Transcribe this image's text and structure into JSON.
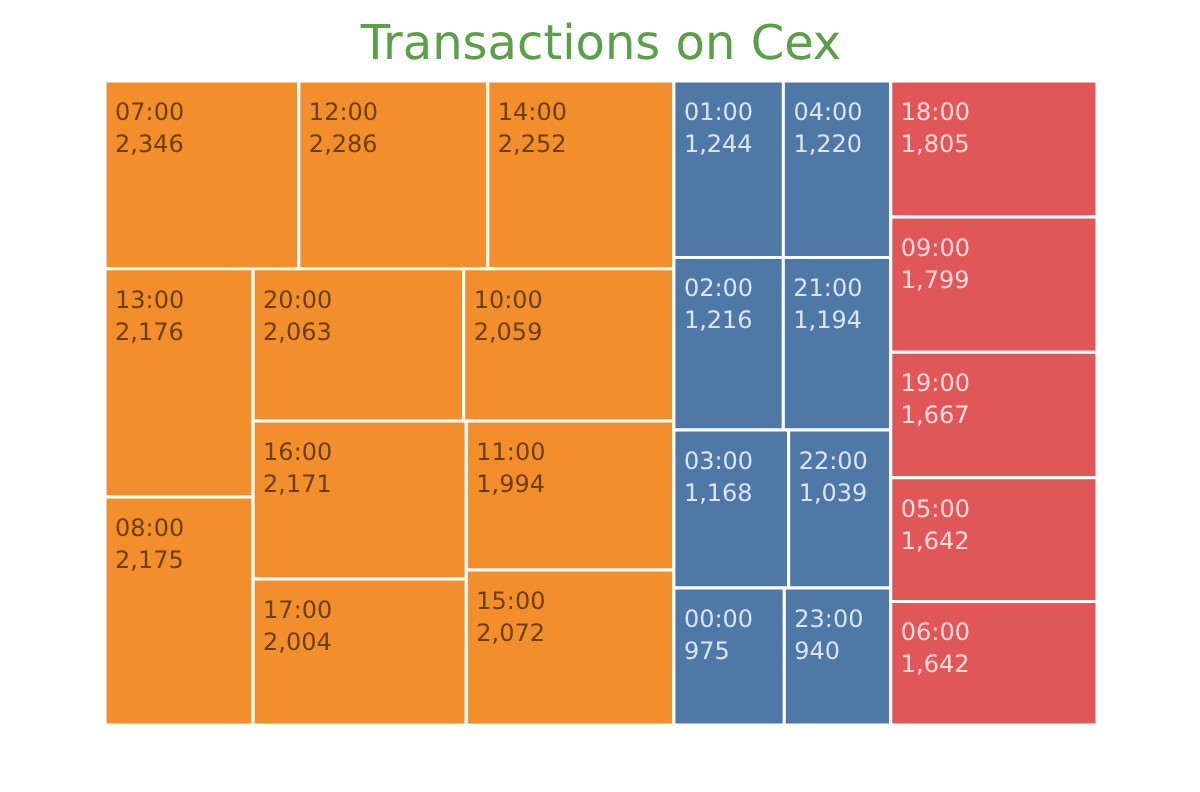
{
  "chart_data": {
    "type": "other",
    "title": "Transactions on Cex",
    "data_labels": true,
    "categories": [
      "07:00",
      "12:00",
      "14:00",
      "13:00",
      "08:00",
      "20:00",
      "10:00",
      "16:00",
      "17:00",
      "11:00",
      "15:00",
      "01:00",
      "04:00",
      "02:00",
      "21:00",
      "03:00",
      "22:00",
      "00:00",
      "23:00",
      "18:00",
      "09:00",
      "19:00",
      "05:00",
      "06:00"
    ],
    "values": [
      2346,
      2286,
      2252,
      2176,
      2175,
      2063,
      2059,
      2171,
      2004,
      1994,
      2072,
      1244,
      1220,
      1216,
      1194,
      1168,
      1039,
      975,
      940,
      1805,
      1799,
      1667,
      1642,
      1642
    ],
    "value_labels": [
      "2,346",
      "2,286",
      "2,252",
      "2,176",
      "2,175",
      "2,063",
      "2,059",
      "2,171",
      "2,004",
      "1,994",
      "2,072",
      "1,244",
      "1,220",
      "1,216",
      "1,194",
      "1,168",
      "1,039",
      "975",
      "940",
      "1,805",
      "1,799",
      "1,667",
      "1,642",
      "1,642"
    ],
    "colors": [
      "#f28e2b",
      "#f28e2b",
      "#f28e2b",
      "#f28e2b",
      "#f28e2b",
      "#f28e2b",
      "#f28e2b",
      "#f28e2b",
      "#f28e2b",
      "#f28e2b",
      "#f28e2b",
      "#4e79a7",
      "#4e79a7",
      "#4e79a7",
      "#4e79a7",
      "#4e79a7",
      "#4e79a7",
      "#4e79a7",
      "#4e79a7",
      "#e15759",
      "#e15759",
      "#e15759",
      "#e15759",
      "#e15759"
    ]
  }
}
